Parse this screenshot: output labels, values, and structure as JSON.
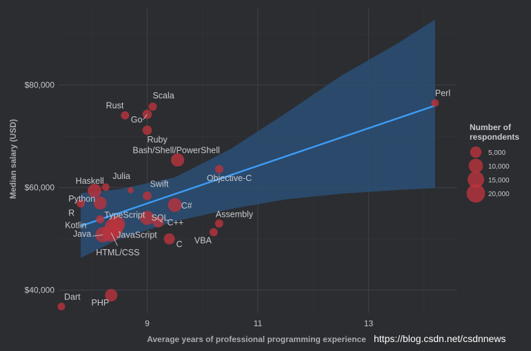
{
  "chart_data": {
    "type": "scatter",
    "title": "",
    "xlabel": "Average years of professional programming experience",
    "ylabel": "Median salary (USD)",
    "xlim": [
      7.4,
      14.6
    ],
    "ylim": [
      35500,
      95000
    ],
    "x_ticks": [
      9,
      11,
      13
    ],
    "x_tick_labels": [
      "9",
      "11",
      "13"
    ],
    "y_ticks": [
      40000,
      60000,
      80000
    ],
    "y_tick_labels": [
      "$40,000",
      "$60,000",
      "$80,000"
    ],
    "legend_position": "right",
    "legend": {
      "title_lines": [
        "Number of",
        "respondents"
      ],
      "entries": [
        {
          "label": "5,000",
          "size": 5000
        },
        {
          "label": "10,000",
          "size": 10000
        },
        {
          "label": "15,000",
          "size": 15000
        },
        {
          "label": "20,000",
          "size": 20000
        }
      ]
    },
    "trend": {
      "x_start": 7.8,
      "y_start": 52500,
      "x_end": 14.2,
      "y_end": 76000,
      "band_lower": [
        [
          7.8,
          46300
        ],
        [
          8.5,
          50000
        ],
        [
          9.5,
          53400
        ],
        [
          10.5,
          55800
        ],
        [
          11.5,
          57700
        ],
        [
          12.5,
          58800
        ],
        [
          13.5,
          59500
        ],
        [
          14.2,
          59900
        ]
      ],
      "band_upper": [
        [
          7.8,
          58900
        ],
        [
          8.5,
          59700
        ],
        [
          9.5,
          62000
        ],
        [
          10.5,
          67500
        ],
        [
          11.5,
          74500
        ],
        [
          12.5,
          81800
        ],
        [
          13.5,
          88000
        ],
        [
          14.2,
          92800
        ]
      ]
    },
    "points": [
      {
        "label": "Perl",
        "x": 14.2,
        "y": 76500,
        "n": 1000
      },
      {
        "label": "Scala",
        "x": 9.1,
        "y": 75800,
        "n": 1500
      },
      {
        "label": "Rust",
        "x": 8.6,
        "y": 74100,
        "n": 1500
      },
      {
        "label": "Go",
        "x": 9.0,
        "y": 74300,
        "n": 2500
      },
      {
        "label": "Ruby",
        "x": 9.0,
        "y": 71200,
        "n": 2500
      },
      {
        "label": "Bash/Shell/PowerShell",
        "x": 9.55,
        "y": 65400,
        "n": 8000
      },
      {
        "label": "Objective-C",
        "x": 10.3,
        "y": 63600,
        "n": 1500
      },
      {
        "label": "Haskell",
        "x": 8.05,
        "y": 59400,
        "n": 9000
      },
      {
        "label": "Julia",
        "x": 8.25,
        "y": 60100,
        "n": 1000
      },
      {
        "label": "Swift",
        "x": 9.0,
        "y": 58400,
        "n": 2000
      },
      {
        "label": "",
        "x": 8.7,
        "y": 59500,
        "n": 300
      },
      {
        "label": "Python",
        "x": 8.15,
        "y": 57000,
        "n": 7500
      },
      {
        "label": "R",
        "x": 7.8,
        "y": 56900,
        "n": 1500
      },
      {
        "label": "SQL",
        "x": 9.0,
        "y": 54100,
        "n": 9500
      },
      {
        "label": "C#",
        "x": 9.5,
        "y": 56600,
        "n": 9000
      },
      {
        "label": "TypeScript",
        "x": 8.45,
        "y": 52900,
        "n": 15000
      },
      {
        "label": "C++",
        "x": 9.2,
        "y": 53300,
        "n": 4500
      },
      {
        "label": "Assembly",
        "x": 10.3,
        "y": 53000,
        "n": 1500
      },
      {
        "label": "Kotlin",
        "x": 8.15,
        "y": 53800,
        "n": 1500
      },
      {
        "label": "JavaScript",
        "x": 8.4,
        "y": 52200,
        "n": 21000
      },
      {
        "label": "Java",
        "x": 8.2,
        "y": 50800,
        "n": 12000
      },
      {
        "label": "HTML/CSS",
        "x": 8.35,
        "y": 51200,
        "n": 18000
      },
      {
        "label": "VBA",
        "x": 10.2,
        "y": 51300,
        "n": 1500
      },
      {
        "label": "C",
        "x": 9.4,
        "y": 50000,
        "n": 4500
      },
      {
        "label": "Dart",
        "x": 7.45,
        "y": 36800,
        "n": 1000
      },
      {
        "label": "PHP",
        "x": 8.35,
        "y": 39000,
        "n": 6500
      }
    ],
    "grid": true
  },
  "watermark": "https://blog.csdn.net/csdnnews",
  "colors": {
    "background": "#2b2d31",
    "point": "#b8333d",
    "trend_line": "#3d9bf4",
    "band": "#2c4f74",
    "grid_major": "#3f4247",
    "grid_minor": "#36383d"
  }
}
